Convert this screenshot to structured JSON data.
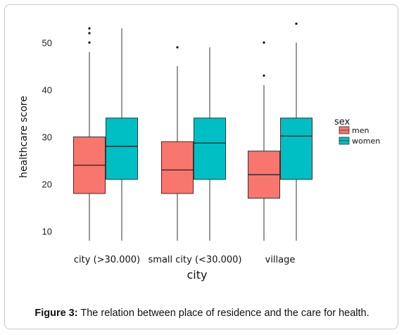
{
  "chart_data": {
    "type": "boxplot",
    "xlabel": "city",
    "ylabel": "healthcare score",
    "categories": [
      "city (>30.000)",
      "small city (<30.000)",
      "village"
    ],
    "yticks": [
      10,
      20,
      30,
      40,
      50
    ],
    "ylim": [
      8,
      55
    ],
    "legend": {
      "title": "sex",
      "placement": "right"
    },
    "series": [
      {
        "name": "men",
        "color": "#f8766d",
        "boxes": [
          {
            "min": 8,
            "q1": 18,
            "median": 24,
            "q3": 30,
            "max": 48,
            "outliers": [
              50,
              52,
              53
            ]
          },
          {
            "min": 8,
            "q1": 18,
            "median": 23,
            "q3": 29,
            "max": 45,
            "outliers": [
              49
            ]
          },
          {
            "min": 8,
            "q1": 17,
            "median": 22,
            "q3": 27,
            "max": 41,
            "outliers": [
              43,
              50
            ]
          }
        ]
      },
      {
        "name": "women",
        "color": "#00bfc4",
        "boxes": [
          {
            "min": 8,
            "q1": 21,
            "median": 28,
            "q3": 34,
            "max": 53,
            "outliers": []
          },
          {
            "min": 8,
            "q1": 21,
            "median": 28.7,
            "q3": 34,
            "max": 49,
            "outliers": []
          },
          {
            "min": 8,
            "q1": 21,
            "median": 30.2,
            "q3": 34,
            "max": 50,
            "outliers": [
              54
            ]
          }
        ]
      }
    ]
  },
  "caption": {
    "label": "Figure 3:",
    "text": " The relation between place of residence and the care for health."
  }
}
